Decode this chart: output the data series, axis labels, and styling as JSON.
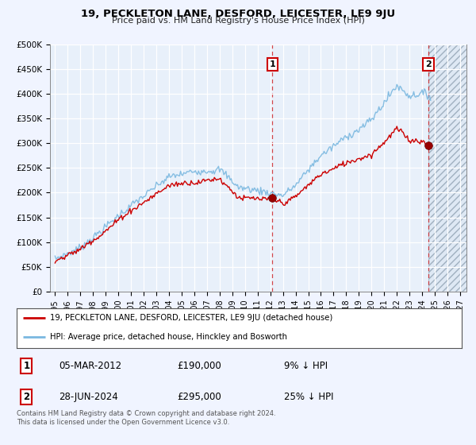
{
  "title": "19, PECKLETON LANE, DESFORD, LEICESTER, LE9 9JU",
  "subtitle": "Price paid vs. HM Land Registry's House Price Index (HPI)",
  "ylim": [
    0,
    500000
  ],
  "yticks": [
    0,
    50000,
    100000,
    150000,
    200000,
    250000,
    300000,
    350000,
    400000,
    450000,
    500000
  ],
  "ytick_labels": [
    "£0",
    "£50K",
    "£100K",
    "£150K",
    "£200K",
    "£250K",
    "£300K",
    "£350K",
    "£400K",
    "£450K",
    "£500K"
  ],
  "xtick_years": [
    1995,
    1996,
    1997,
    1998,
    1999,
    2000,
    2001,
    2002,
    2003,
    2004,
    2005,
    2006,
    2007,
    2008,
    2009,
    2010,
    2011,
    2012,
    2013,
    2014,
    2015,
    2016,
    2017,
    2018,
    2019,
    2020,
    2021,
    2022,
    2023,
    2024,
    2025,
    2026,
    2027
  ],
  "hpi_color": "#7ab8e0",
  "price_color": "#cc0000",
  "bg_color": "#f0f4ff",
  "plot_bg": "#e8f0fa",
  "grid_color": "#c8d8ee",
  "hatch_color": "#c8d0dc",
  "t1_year": 2012.17,
  "t1_price": 190000,
  "t2_year": 2024.49,
  "t2_price": 295000,
  "hatch_start": 2024.49,
  "legend_text1": "19, PECKLETON LANE, DESFORD, LEICESTER, LE9 9JU (detached house)",
  "legend_text2": "HPI: Average price, detached house, Hinckley and Bosworth",
  "footnote": "Contains HM Land Registry data © Crown copyright and database right 2024.\nThis data is licensed under the Open Government Licence v3.0.",
  "table_row1": [
    "1",
    "05-MAR-2012",
    "£190,000",
    "9% ↓ HPI"
  ],
  "table_row2": [
    "2",
    "28-JUN-2024",
    "£295,000",
    "25% ↓ HPI"
  ]
}
